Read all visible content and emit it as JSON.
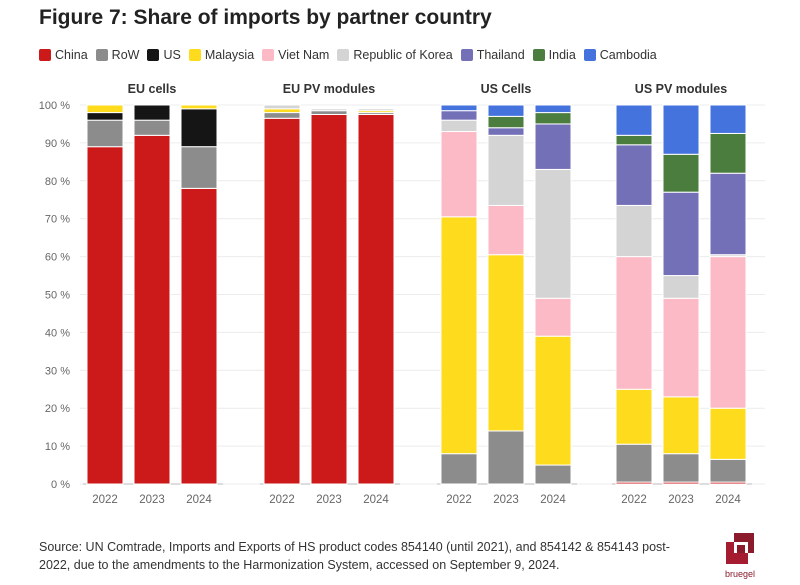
{
  "title": "Figure 7: Share of imports by partner country",
  "source": "Source: UN Comtrade, Imports and Exports of HS product codes 854140 (until 2021), and 854142 & 854143 post-2022, due to the amendments to the Harmonization System, accessed on September 9, 2024.",
  "logo_text": "bruegel",
  "legend": [
    {
      "name": "China",
      "color": "#cc1a1a"
    },
    {
      "name": "RoW",
      "color": "#8c8c8c"
    },
    {
      "name": "US",
      "color": "#151515"
    },
    {
      "name": "Malaysia",
      "color": "#fedb1c"
    },
    {
      "name": "Viet Nam",
      "color": "#fcb9c6"
    },
    {
      "name": "Republic of Korea",
      "color": "#d4d4d4"
    },
    {
      "name": "Thailand",
      "color": "#7470b8"
    },
    {
      "name": "India",
      "color": "#4a7d3e"
    },
    {
      "name": "Cambodia",
      "color": "#4573de"
    }
  ],
  "chart_data": {
    "type": "bar",
    "stacked": true,
    "y_unit": "%",
    "ylim": [
      0,
      100
    ],
    "y_ticks": [
      "0 %",
      "10 %",
      "20 %",
      "30 %",
      "40 %",
      "50 %",
      "60 %",
      "70 %",
      "80 %",
      "90 %",
      "100 %"
    ],
    "grid": true,
    "legend_position": "top",
    "categories": [
      "2022",
      "2023",
      "2024"
    ],
    "series_order": [
      "China",
      "RoW",
      "US",
      "Malaysia",
      "Viet Nam",
      "Republic of Korea",
      "Thailand",
      "India",
      "Cambodia"
    ],
    "panels": [
      {
        "title": "EU cells",
        "series": [
          {
            "name": "China",
            "values": [
              89,
              92,
              78
            ]
          },
          {
            "name": "RoW",
            "values": [
              7,
              4,
              11
            ]
          },
          {
            "name": "US",
            "values": [
              2,
              4,
              10
            ]
          },
          {
            "name": "Malaysia",
            "values": [
              2,
              0,
              1
            ]
          },
          {
            "name": "Viet Nam",
            "values": [
              0,
              0,
              0
            ]
          },
          {
            "name": "Republic of Korea",
            "values": [
              0,
              0,
              0
            ]
          },
          {
            "name": "Thailand",
            "values": [
              0,
              0,
              0
            ]
          },
          {
            "name": "India",
            "values": [
              0,
              0,
              0
            ]
          },
          {
            "name": "Cambodia",
            "values": [
              0,
              0,
              0
            ]
          }
        ]
      },
      {
        "title": "EU PV modules",
        "series": [
          {
            "name": "China",
            "values": [
              96.5,
              97.5,
              97.5
            ]
          },
          {
            "name": "RoW",
            "values": [
              1.5,
              1,
              0.5
            ]
          },
          {
            "name": "US",
            "values": [
              0,
              0,
              0
            ]
          },
          {
            "name": "Malaysia",
            "values": [
              1,
              0,
              0.5
            ]
          },
          {
            "name": "Viet Nam",
            "values": [
              0,
              0,
              0
            ]
          },
          {
            "name": "Republic of Korea",
            "values": [
              1,
              0.5,
              0.5
            ]
          },
          {
            "name": "Thailand",
            "values": [
              0,
              0,
              0
            ]
          },
          {
            "name": "India",
            "values": [
              0,
              0,
              0
            ]
          },
          {
            "name": "Cambodia",
            "values": [
              0,
              0,
              0
            ]
          }
        ]
      },
      {
        "title": "US Cells",
        "series": [
          {
            "name": "China",
            "values": [
              0,
              0,
              0
            ]
          },
          {
            "name": "RoW",
            "values": [
              8,
              14,
              5
            ]
          },
          {
            "name": "US",
            "values": [
              0,
              0,
              0
            ]
          },
          {
            "name": "Malaysia",
            "values": [
              62.5,
              46.5,
              34
            ]
          },
          {
            "name": "Viet Nam",
            "values": [
              22.5,
              13,
              10
            ]
          },
          {
            "name": "Republic of Korea",
            "values": [
              3,
              18.5,
              34
            ]
          },
          {
            "name": "Thailand",
            "values": [
              2.5,
              2,
              12
            ]
          },
          {
            "name": "India",
            "values": [
              0,
              3,
              3
            ]
          },
          {
            "name": "Cambodia",
            "values": [
              1.5,
              3,
              2
            ]
          }
        ]
      },
      {
        "title": "US PV modules",
        "series": [
          {
            "name": "China",
            "values": [
              0.5,
              0.5,
              0.5
            ]
          },
          {
            "name": "RoW",
            "values": [
              10,
              7.5,
              6
            ]
          },
          {
            "name": "US",
            "values": [
              0,
              0,
              0
            ]
          },
          {
            "name": "Malaysia",
            "values": [
              14.5,
              15,
              13.5
            ]
          },
          {
            "name": "Viet Nam",
            "values": [
              35,
              26,
              40
            ]
          },
          {
            "name": "Republic of Korea",
            "values": [
              13.5,
              6,
              0.5
            ]
          },
          {
            "name": "Thailand",
            "values": [
              16,
              22,
              21.5
            ]
          },
          {
            "name": "India",
            "values": [
              2.5,
              10,
              10.5
            ]
          },
          {
            "name": "Cambodia",
            "values": [
              8,
              13,
              7.5
            ]
          }
        ]
      }
    ]
  }
}
